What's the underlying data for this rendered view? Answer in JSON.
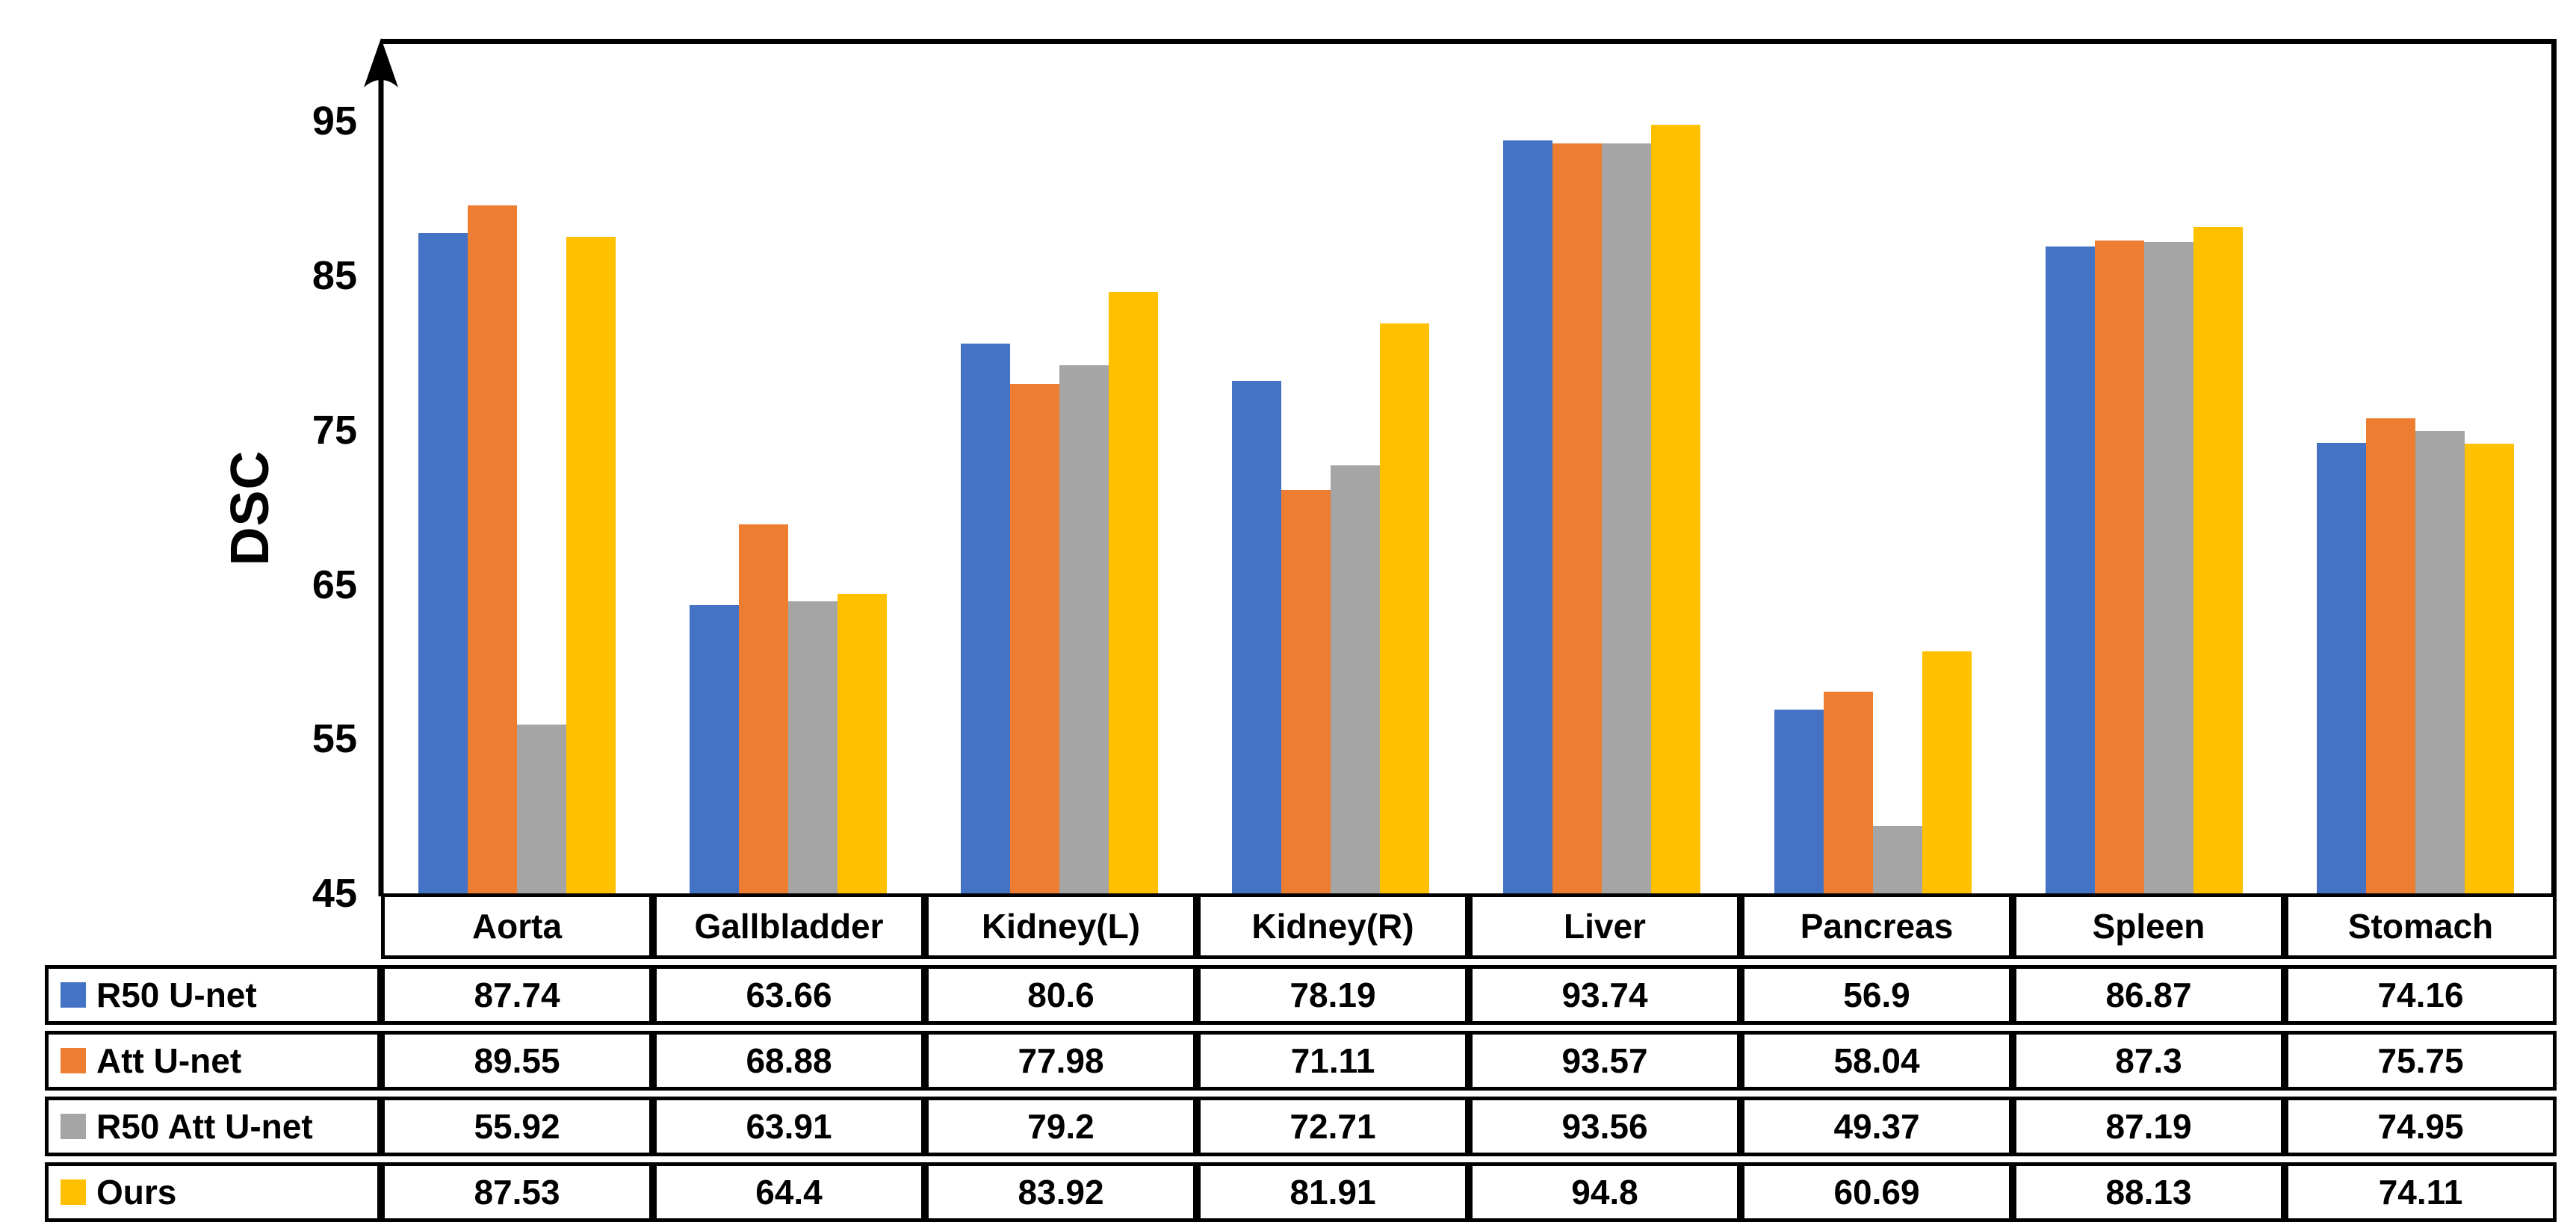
{
  "chart_data": {
    "type": "bar",
    "title": "",
    "ylabel": "DSC",
    "xlabel": "",
    "ylim": [
      45,
      100
    ],
    "yticks": [
      45,
      55,
      65,
      75,
      85,
      95
    ],
    "grid": false,
    "legend_position": "table-left-column",
    "categories": [
      "Aorta",
      "Gallbladder",
      "Kidney(L)",
      "Kidney(R)",
      "Liver",
      "Pancreas",
      "Spleen",
      "Stomach"
    ],
    "series": [
      {
        "name": "R50 U-net",
        "color": "#4472C4",
        "values": [
          87.74,
          63.66,
          80.6,
          78.19,
          93.74,
          56.9,
          86.87,
          74.16
        ]
      },
      {
        "name": "Att U-net",
        "color": "#ED7D31",
        "values": [
          89.55,
          68.88,
          77.98,
          71.11,
          93.57,
          58.04,
          87.3,
          75.75
        ]
      },
      {
        "name": "R50 Att U-net",
        "color": "#A5A5A5",
        "values": [
          55.92,
          63.91,
          79.2,
          72.71,
          93.56,
          49.37,
          87.19,
          74.95
        ]
      },
      {
        "name": "Ours",
        "color": "#FFC000",
        "values": [
          87.53,
          64.4,
          83.92,
          81.91,
          94.8,
          60.69,
          88.13,
          74.11
        ]
      }
    ],
    "axis_color": "#000000",
    "table_border_color": "#000000"
  }
}
